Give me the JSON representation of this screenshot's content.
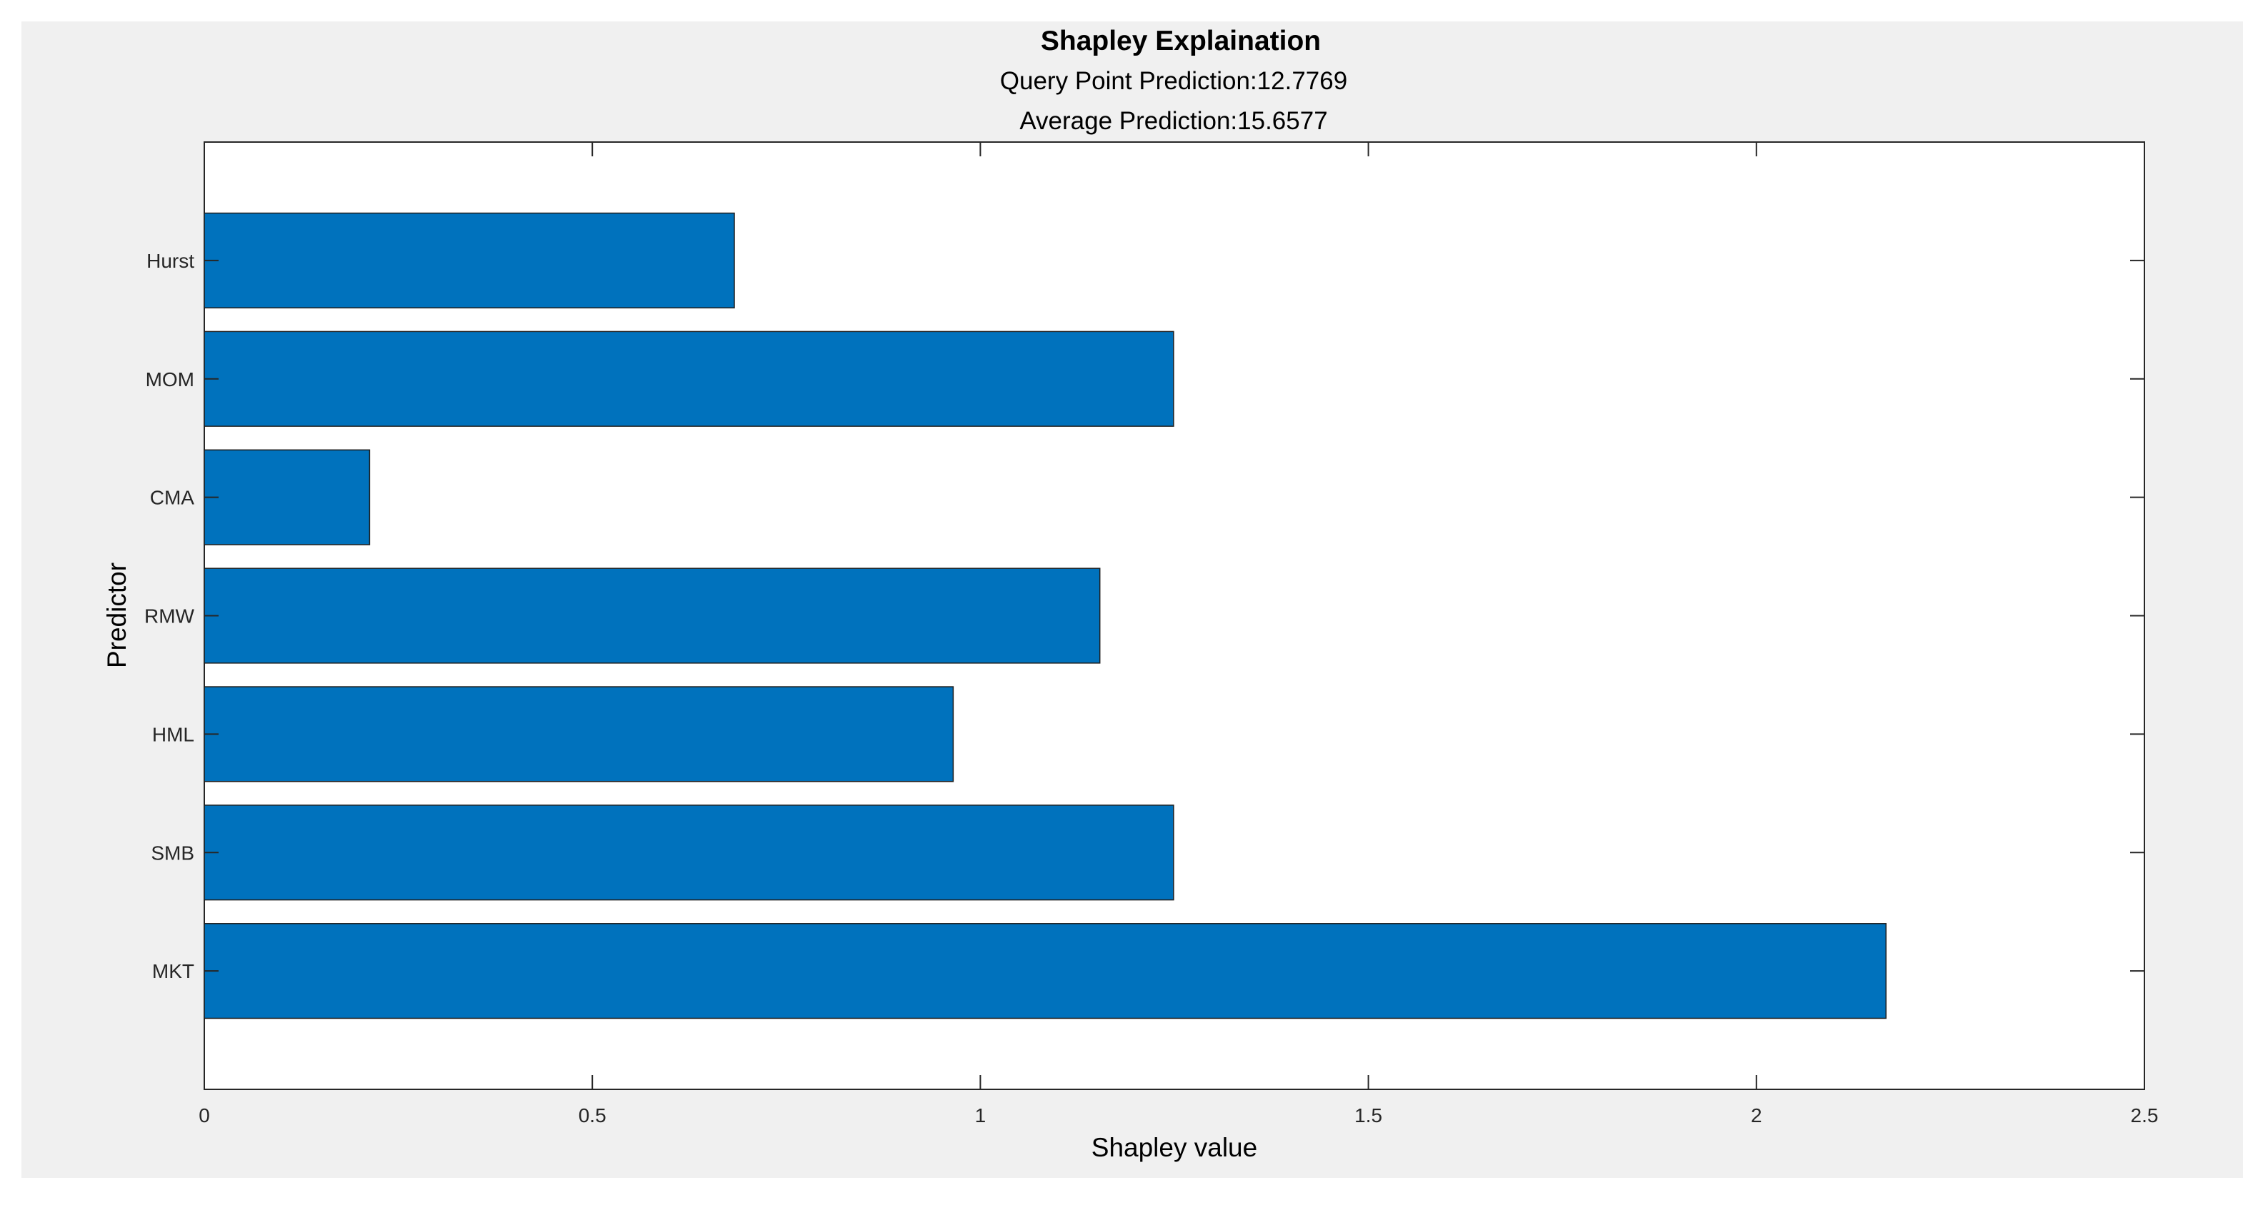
{
  "chart_data": {
    "type": "bar",
    "orientation": "horizontal",
    "title": "Shapley Explaination",
    "subtitle_lines": [
      "Query Point Prediction:12.7769",
      "Average Prediction:15.6577"
    ],
    "xlabel": "Shapley value",
    "ylabel": "Predictor",
    "categories": [
      "MKT",
      "SMB",
      "HML",
      "RMW",
      "CMA",
      "MOM",
      "Hurst"
    ],
    "values": [
      2.167,
      1.249,
      0.965,
      1.154,
      0.213,
      1.249,
      0.683
    ],
    "xlim": [
      0,
      2.5
    ],
    "xticks": [
      0,
      0.5,
      1,
      1.5,
      2,
      2.5
    ],
    "xtick_labels": [
      "0",
      "0.5",
      "1",
      "1.5",
      "2",
      "2.5"
    ],
    "grid": false,
    "bar_color": "#0072bd",
    "background_color": "#f0f0f0",
    "axes_color": "#ffffff"
  }
}
